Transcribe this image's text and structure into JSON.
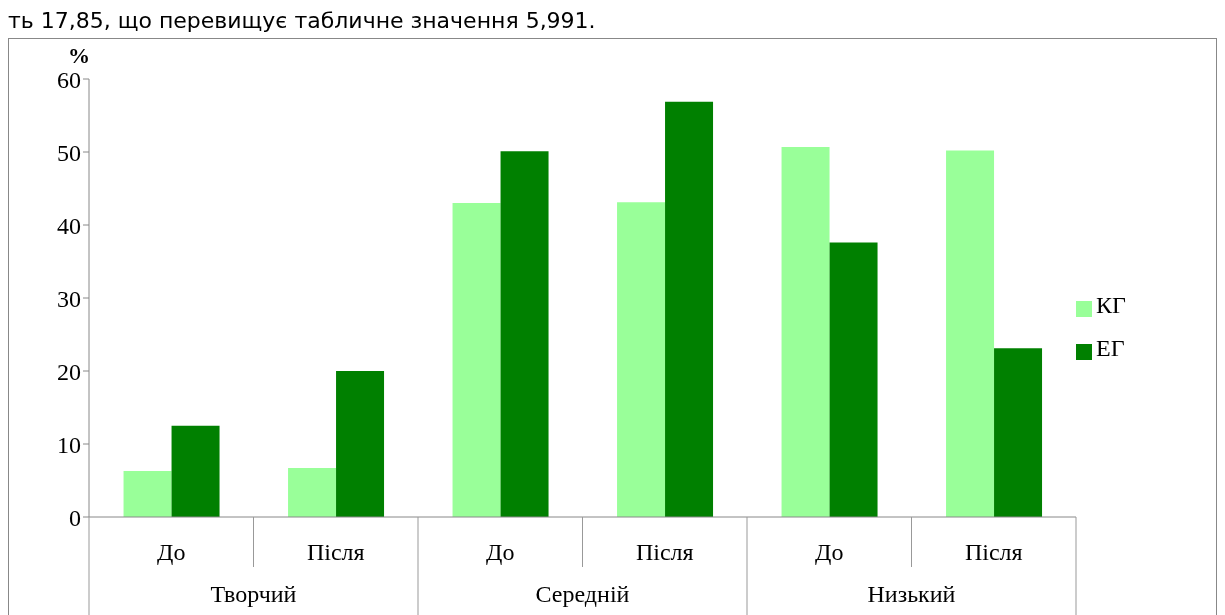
{
  "chart_data": {
    "type": "bar",
    "ylabel": "%",
    "categories": [
      "До",
      "Після",
      "До",
      "Після",
      "До",
      "Після"
    ],
    "series": [
      {
        "name": "КГ",
        "color": "#99ff99",
        "values": [
          6.3,
          6.7,
          43.0,
          43.1,
          50.7,
          50.2
        ]
      },
      {
        "name": "ЕГ",
        "color": "#008000",
        "values": [
          12.5,
          20.0,
          50.1,
          56.9,
          37.6,
          23.1
        ]
      }
    ],
    "ylim": [
      0,
      60
    ],
    "yticks": [
      0,
      10,
      20,
      30,
      40,
      50,
      60
    ],
    "grid": false,
    "legend": "right",
    "annotations": [
      "ть 17,85, що перевищує табличне значення 5,991.",
      "Творчий",
      "Середній",
      "Низький"
    ]
  }
}
